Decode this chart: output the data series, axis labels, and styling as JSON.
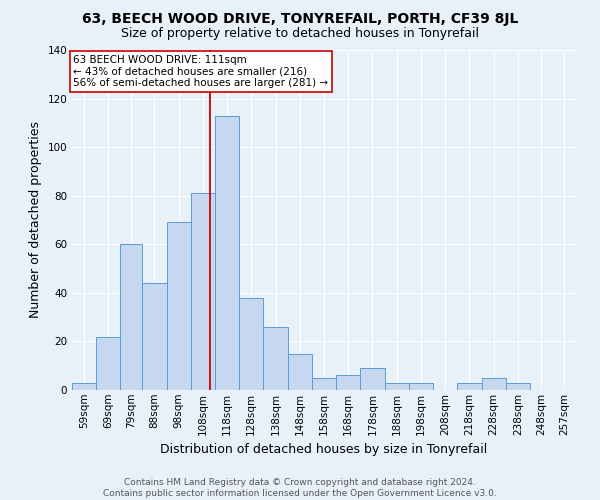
{
  "title": "63, BEECH WOOD DRIVE, TONYREFAIL, PORTH, CF39 8JL",
  "subtitle": "Size of property relative to detached houses in Tonyrefail",
  "xlabel": "Distribution of detached houses by size in Tonyrefail",
  "ylabel": "Number of detached properties",
  "bin_labels": [
    "59sqm",
    "69sqm",
    "79sqm",
    "88sqm",
    "98sqm",
    "108sqm",
    "118sqm",
    "128sqm",
    "138sqm",
    "148sqm",
    "158sqm",
    "168sqm",
    "178sqm",
    "188sqm",
    "198sqm",
    "208sqm",
    "218sqm",
    "228sqm",
    "238sqm",
    "248sqm",
    "257sqm"
  ],
  "bin_edges": [
    54,
    64,
    74,
    83,
    93,
    103,
    113,
    123,
    133,
    143,
    153,
    163,
    173,
    183,
    193,
    203,
    213,
    223,
    233,
    243,
    252,
    262
  ],
  "bar_heights": [
    3,
    22,
    60,
    44,
    69,
    81,
    113,
    38,
    26,
    15,
    5,
    6,
    9,
    3,
    3,
    0,
    3,
    5,
    3,
    0,
    0
  ],
  "bar_color": "#c5d8f0",
  "bar_edge_color": "#5b9bd5",
  "property_size": 111,
  "vline_color": "#cc0000",
  "annotation_line1": "63 BEECH WOOD DRIVE: 111sqm",
  "annotation_line2": "← 43% of detached houses are smaller (216)",
  "annotation_line3": "56% of semi-detached houses are larger (281) →",
  "annotation_box_color": "#ffffff",
  "annotation_box_edge_color": "#cc0000",
  "ylim": [
    0,
    140
  ],
  "yticks": [
    0,
    20,
    40,
    60,
    80,
    100,
    120,
    140
  ],
  "footer_text": "Contains HM Land Registry data © Crown copyright and database right 2024.\nContains public sector information licensed under the Open Government Licence v3.0.",
  "background_color": "#e8f0f8",
  "grid_color": "#ffffff",
  "title_fontsize": 10,
  "subtitle_fontsize": 9,
  "label_fontsize": 9,
  "tick_fontsize": 7.5,
  "annotation_fontsize": 7.5,
  "footer_fontsize": 6.5
}
